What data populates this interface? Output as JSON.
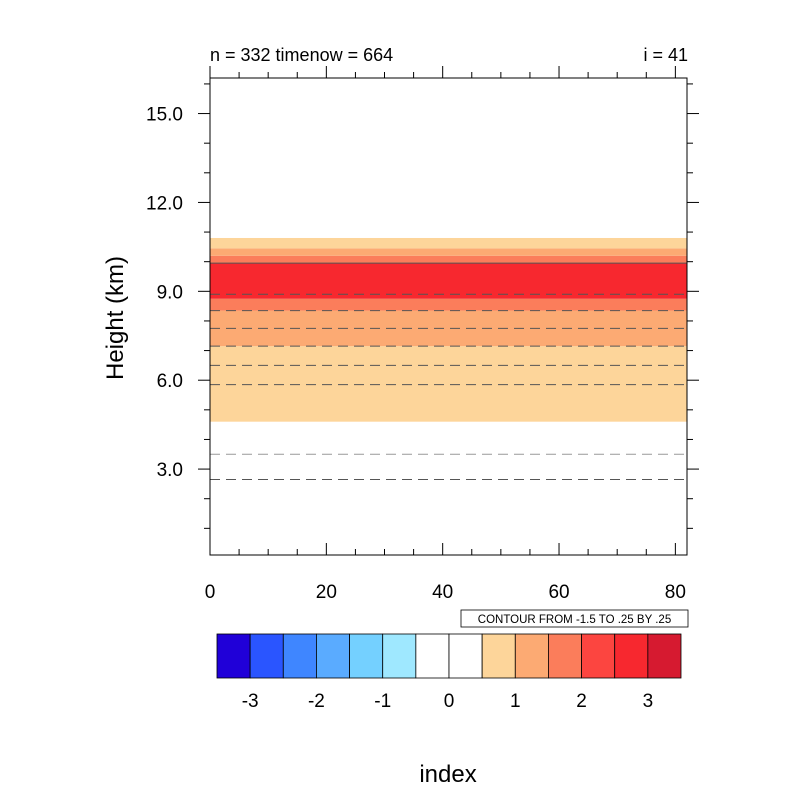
{
  "chart_data": {
    "type": "heatmap",
    "left_title": "n = 332 timenow = 664",
    "right_title": "i = 41",
    "ylabel": "Height (km)",
    "xlabel": "index",
    "xlim": [
      0,
      82
    ],
    "ylim": [
      0.1,
      16.2
    ],
    "x_ticks": [
      "0",
      "20",
      "40",
      "60",
      "80"
    ],
    "y_ticks": [
      "3.0",
      "6.0",
      "9.0",
      "12.0",
      "15.0"
    ],
    "contour_info": "CONTOUR FROM -1.5 TO .25 BY .25",
    "bands": [
      {
        "from": 4.6,
        "to": 7.15,
        "color": "#fdd59a"
      },
      {
        "from": 7.15,
        "to": 8.35,
        "color": "#fcaa73"
      },
      {
        "from": 8.35,
        "to": 8.75,
        "color": "#fb7d5b"
      },
      {
        "from": 8.75,
        "to": 9.95,
        "color": "#f7282f"
      },
      {
        "from": 9.95,
        "to": 10.2,
        "color": "#fb7d5b"
      },
      {
        "from": 10.2,
        "to": 10.45,
        "color": "#fcaa73"
      },
      {
        "from": 10.45,
        "to": 10.8,
        "color": "#fdd59a"
      }
    ],
    "contour_lines": [
      {
        "y": 2.65,
        "style": "dashed",
        "color": "#555555"
      },
      {
        "y": 3.5,
        "style": "dashed",
        "color": "#999999"
      },
      {
        "y": 5.85,
        "style": "dashed",
        "color": "#555555"
      },
      {
        "y": 6.5,
        "style": "dashed",
        "color": "#555555"
      },
      {
        "y": 7.15,
        "style": "dashed",
        "color": "#555555"
      },
      {
        "y": 7.75,
        "style": "dashed",
        "color": "#555555"
      },
      {
        "y": 8.35,
        "style": "dashed",
        "color": "#555555"
      },
      {
        "y": 8.9,
        "style": "dashed",
        "color": "#555555"
      },
      {
        "y": 9.95,
        "style": "solid",
        "color": "#555555"
      }
    ],
    "colorbar": {
      "colors": [
        "#2000d8",
        "#2a55ff",
        "#3f86ff",
        "#5aabff",
        "#74d0ff",
        "#9fe8ff",
        "#ffffff",
        "#ffffff",
        "#fdd59a",
        "#fcaa73",
        "#fb7d5b",
        "#fc4540",
        "#f7282f",
        "#d61a30"
      ],
      "labels": [
        "-3",
        "-2",
        "-1",
        "0",
        "1",
        "2",
        "3"
      ]
    }
  }
}
